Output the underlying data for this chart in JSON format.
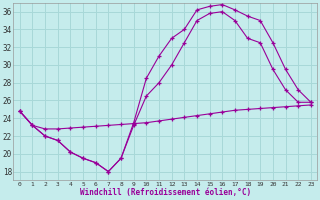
{
  "xlabel": "Windchill (Refroidissement éolien,°C)",
  "bg_color": "#c5ecec",
  "line_color": "#990099",
  "grid_color": "#a8d8d8",
  "ylim": [
    17,
    37
  ],
  "xlim": [
    -0.5,
    23.5
  ],
  "yticks": [
    18,
    20,
    22,
    24,
    26,
    28,
    30,
    32,
    34,
    36
  ],
  "xticks": [
    0,
    1,
    2,
    3,
    4,
    5,
    6,
    7,
    8,
    9,
    10,
    11,
    12,
    13,
    14,
    15,
    16,
    17,
    18,
    19,
    20,
    21,
    22,
    23
  ],
  "line1_x": [
    0,
    1,
    2,
    3,
    4,
    5,
    6,
    7,
    8,
    9,
    10,
    11,
    12,
    13,
    14,
    15,
    16,
    17,
    18,
    19,
    20,
    21,
    22,
    23
  ],
  "line1_y": [
    24.8,
    23.2,
    22.8,
    22.8,
    22.9,
    23.0,
    23.1,
    23.2,
    23.3,
    23.4,
    23.5,
    23.7,
    23.9,
    24.1,
    24.3,
    24.5,
    24.7,
    24.9,
    25.0,
    25.1,
    25.2,
    25.3,
    25.4,
    25.5
  ],
  "line2_x": [
    0,
    1,
    2,
    3,
    4,
    5,
    6,
    7,
    8,
    9,
    10,
    11,
    12,
    13,
    14,
    15,
    16,
    17,
    18,
    19,
    20,
    21,
    22,
    23
  ],
  "line2_y": [
    24.8,
    23.2,
    22.0,
    21.5,
    20.2,
    19.5,
    19.0,
    18.0,
    19.5,
    23.5,
    28.5,
    31.0,
    33.0,
    34.0,
    36.2,
    36.6,
    36.8,
    36.2,
    35.5,
    35.0,
    32.5,
    29.5,
    27.2,
    25.8
  ],
  "line3_x": [
    0,
    1,
    2,
    3,
    4,
    5,
    6,
    7,
    8,
    9,
    10,
    11,
    12,
    13,
    14,
    15,
    16,
    17,
    18,
    19,
    20,
    21,
    22,
    23
  ],
  "line3_y": [
    24.8,
    23.2,
    22.0,
    21.5,
    20.2,
    19.5,
    19.0,
    18.0,
    19.5,
    23.2,
    26.5,
    28.0,
    30.0,
    32.5,
    35.0,
    35.8,
    36.0,
    35.0,
    33.0,
    32.5,
    29.5,
    27.2,
    25.8,
    25.8
  ]
}
